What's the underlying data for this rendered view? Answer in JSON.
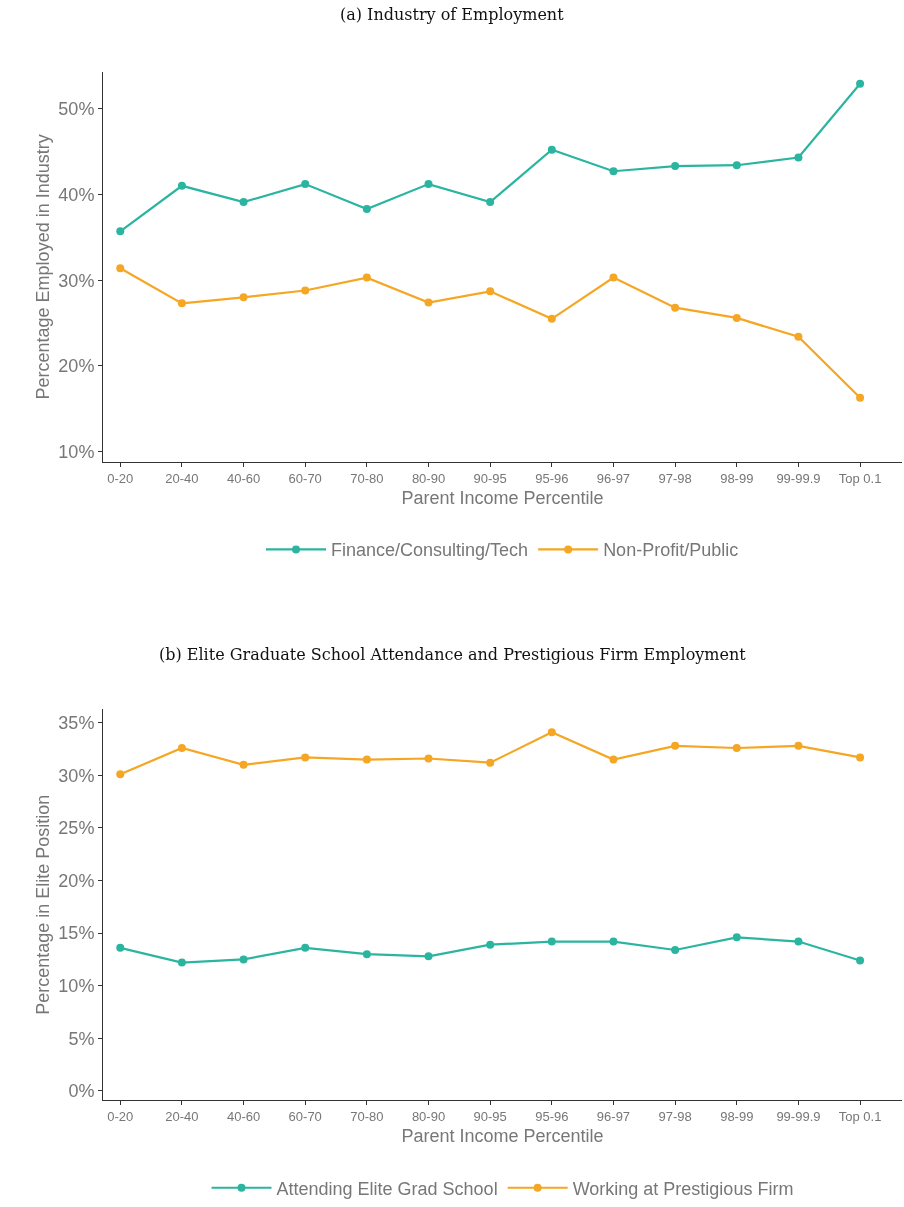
{
  "chart_data": [
    {
      "type": "line",
      "title": "(a) Industry of Employment",
      "xlabel": "Parent Income Percentile",
      "ylabel": "Percentage Employed in Industry",
      "categories": [
        "0-20",
        "20-40",
        "40-60",
        "60-70",
        "70-80",
        "80-90",
        "90-95",
        "95-96",
        "96-97",
        "97-98",
        "98-99",
        "99-99.9",
        "Top 0.1"
      ],
      "series": [
        {
          "name": "Finance/Consulting/Tech",
          "color": "#2bb5a0",
          "values": [
            35.7,
            41.0,
            39.1,
            41.2,
            38.3,
            41.2,
            39.1,
            45.2,
            42.7,
            43.3,
            43.4,
            44.3,
            52.9
          ]
        },
        {
          "name": "Non-Profit/Public",
          "color": "#f5a623",
          "values": [
            31.4,
            27.3,
            28.0,
            28.8,
            30.3,
            27.4,
            28.7,
            25.5,
            30.3,
            26.8,
            25.6,
            23.4,
            16.3
          ]
        }
      ],
      "ylim": [
        8.8,
        54.3
      ],
      "yticks": [
        {
          "value": 10,
          "label": "10%"
        },
        {
          "value": 20,
          "label": "20%"
        },
        {
          "value": 30,
          "label": "30%"
        },
        {
          "value": 40,
          "label": "40%"
        },
        {
          "value": 50,
          "label": "50%"
        }
      ],
      "marker": "circle",
      "line_style": "solid",
      "legend": "bottom"
    },
    {
      "type": "line",
      "title": "(b) Elite Graduate School Attendance and Prestigious Firm Employment",
      "xlabel": "Parent Income Percentile",
      "ylabel": "Percentage in Elite Position",
      "categories": [
        "0-20",
        "20-40",
        "40-60",
        "60-70",
        "70-80",
        "80-90",
        "90-95",
        "95-96",
        "96-97",
        "97-98",
        "98-99",
        "99-99.9",
        "Top 0.1"
      ],
      "series": [
        {
          "name": "Attending Elite Grad School",
          "color": "#2bb5a0",
          "values": [
            13.6,
            12.2,
            12.5,
            13.6,
            13.0,
            12.8,
            13.9,
            14.2,
            14.2,
            13.4,
            14.6,
            14.2,
            12.4
          ]
        },
        {
          "name": "Working at Prestigious Firm",
          "color": "#f5a623",
          "values": [
            30.1,
            32.6,
            31.0,
            31.7,
            31.5,
            31.6,
            31.2,
            34.1,
            31.5,
            32.8,
            32.6,
            32.8,
            31.7
          ]
        }
      ],
      "ylim": [
        -0.9,
        36.3
      ],
      "yticks": [
        {
          "value": 0,
          "label": "0%"
        },
        {
          "value": 5,
          "label": "5%"
        },
        {
          "value": 10,
          "label": "10%"
        },
        {
          "value": 15,
          "label": "15%"
        },
        {
          "value": 20,
          "label": "20%"
        },
        {
          "value": 25,
          "label": "25%"
        },
        {
          "value": 30,
          "label": "30%"
        },
        {
          "value": 35,
          "label": "35%"
        }
      ],
      "marker": "circle",
      "line_style": "solid",
      "legend": "bottom"
    }
  ]
}
